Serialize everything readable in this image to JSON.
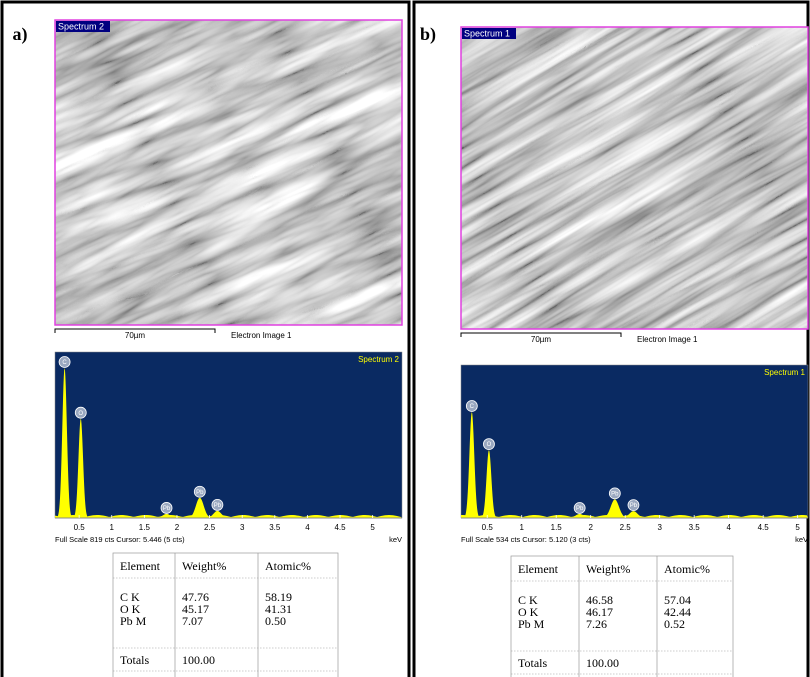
{
  "panels": [
    {
      "label": "a)",
      "image": {
        "title": "Spectrum 2",
        "scale_bar": "70µm",
        "caption": "Electron Image 1"
      },
      "spectrum": {
        "title": "Spectrum 2",
        "xlim": [
          0.13,
          5.45
        ],
        "ylim": [
          0,
          819
        ],
        "xticks": [
          0.5,
          1,
          1.5,
          2,
          2.5,
          3,
          3.5,
          4,
          4.5,
          5
        ],
        "x_unit": "keV",
        "status": "Full Scale 819 cts Cursor: 5.446 (5 cts)",
        "color": "#ffff00",
        "peaks": [
          {
            "label": "C",
            "energy": 0.277,
            "counts": 740
          },
          {
            "label": "O",
            "energy": 0.525,
            "counts": 490
          },
          {
            "label": "Pb",
            "energy": 1.84,
            "counts": 20
          },
          {
            "label": "Pb",
            "energy": 2.35,
            "counts": 100
          },
          {
            "label": "Pb",
            "energy": 2.62,
            "counts": 35
          }
        ]
      },
      "table": {
        "header": [
          "Element",
          "Weight%",
          "Atomic%"
        ],
        "rows": [
          [
            "C K",
            "47.76",
            "58.19"
          ],
          [
            "O K",
            "45.17",
            "41.31"
          ],
          [
            "Pb M",
            "7.07",
            "0.50"
          ]
        ],
        "totals": [
          "Totals",
          "100.00"
        ]
      }
    },
    {
      "label": "b)",
      "image": {
        "title": "Spectrum 1",
        "scale_bar": "70µm",
        "caption": "Electron Image 1"
      },
      "spectrum": {
        "title": "Spectrum 1",
        "xlim": [
          0.12,
          5.15
        ],
        "ylim": [
          0,
          534
        ],
        "xticks": [
          0.5,
          1,
          1.5,
          2,
          2.5,
          3,
          3.5,
          4,
          4.5,
          5
        ],
        "x_unit": "keV",
        "status": "Full Scale 534 cts Cursor: 5.120 (3 cts)",
        "color": "#ffff00",
        "peaks": [
          {
            "label": "C",
            "energy": 0.277,
            "counts": 370
          },
          {
            "label": "O",
            "energy": 0.525,
            "counts": 237
          },
          {
            "label": "Pb",
            "energy": 1.84,
            "counts": 14
          },
          {
            "label": "Pb",
            "energy": 2.35,
            "counts": 65
          },
          {
            "label": "Pb",
            "energy": 2.62,
            "counts": 24
          }
        ]
      },
      "table": {
        "header": [
          "Element",
          "Weight%",
          "Atomic%"
        ],
        "rows": [
          [
            "C K",
            "46.58",
            "57.04"
          ],
          [
            "O K",
            "46.17",
            "42.44"
          ],
          [
            "Pb M",
            "7.26",
            "0.52"
          ]
        ],
        "totals": [
          "Totals",
          "100.00"
        ]
      }
    }
  ]
}
